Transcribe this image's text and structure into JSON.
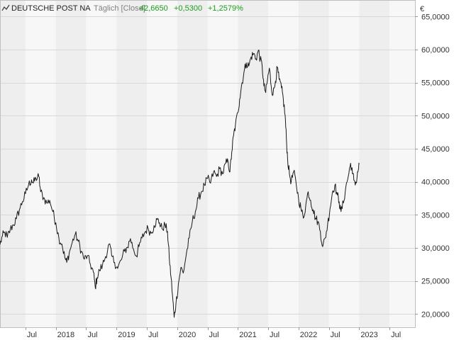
{
  "header": {
    "title": "DEUTSCHE POST NA",
    "mode": "Täglich [Close]",
    "last": "42,6650",
    "change": "+0,5300",
    "change_pct": "+1,2579%",
    "currency": "€"
  },
  "colors": {
    "positive": "#1a9e1a",
    "line": "#1a1a1a",
    "title": "#222222",
    "mode": "#808080",
    "band_a": "#f7f7f7",
    "band_b": "#eeeeee",
    "grid": "#d8d8d8"
  },
  "chart_data": {
    "type": "line",
    "title": "DEUTSCHE POST NA",
    "ylabel": "€",
    "xlabel": "",
    "grid": true,
    "ylim": [
      18000,
      67500
    ],
    "xlim": [
      2017.08,
      2023.92
    ],
    "y_ticks": [
      20000,
      25000,
      30000,
      35000,
      40000,
      45000,
      50000,
      55000,
      60000,
      65000
    ],
    "y_tick_labels": [
      "20,0000",
      "25,0000",
      "30,0000",
      "35,0000",
      "40,0000",
      "45,0000",
      "50,0000",
      "55,0000",
      "60,0000",
      "65,0000"
    ],
    "x_ticks": [
      {
        "x": 2017.5,
        "label": "Jul"
      },
      {
        "x": 2018.0,
        "label": "2018"
      },
      {
        "x": 2018.5,
        "label": "Jul"
      },
      {
        "x": 2019.0,
        "label": "2019"
      },
      {
        "x": 2019.5,
        "label": "Jul"
      },
      {
        "x": 2020.0,
        "label": "2020"
      },
      {
        "x": 2020.5,
        "label": "Jul"
      },
      {
        "x": 2021.0,
        "label": "2021"
      },
      {
        "x": 2021.5,
        "label": "Jul"
      },
      {
        "x": 2022.0,
        "label": "2022"
      },
      {
        "x": 2022.5,
        "label": "Jul"
      },
      {
        "x": 2023.0,
        "label": "2023"
      },
      {
        "x": 2023.5,
        "label": "Jul"
      }
    ],
    "series": [
      {
        "values": [
          [
            2017.08,
            30500
          ],
          [
            2017.12,
            31800
          ],
          [
            2017.16,
            32300
          ],
          [
            2017.2,
            31600
          ],
          [
            2017.25,
            32800
          ],
          [
            2017.3,
            33500
          ],
          [
            2017.35,
            34400
          ],
          [
            2017.4,
            35800
          ],
          [
            2017.45,
            37000
          ],
          [
            2017.5,
            38200
          ],
          [
            2017.55,
            39500
          ],
          [
            2017.6,
            40300
          ],
          [
            2017.63,
            39800
          ],
          [
            2017.67,
            40500
          ],
          [
            2017.72,
            40800
          ],
          [
            2017.75,
            38500
          ],
          [
            2017.8,
            37600
          ],
          [
            2017.85,
            36800
          ],
          [
            2017.9,
            37200
          ],
          [
            2017.95,
            35500
          ],
          [
            2018.0,
            33800
          ],
          [
            2018.05,
            31500
          ],
          [
            2018.1,
            30600
          ],
          [
            2018.15,
            28500
          ],
          [
            2018.18,
            27800
          ],
          [
            2018.22,
            29200
          ],
          [
            2018.27,
            30800
          ],
          [
            2018.32,
            32100
          ],
          [
            2018.37,
            31000
          ],
          [
            2018.42,
            29500
          ],
          [
            2018.47,
            28300
          ],
          [
            2018.52,
            28800
          ],
          [
            2018.57,
            27500
          ],
          [
            2018.62,
            26300
          ],
          [
            2018.65,
            24000
          ],
          [
            2018.68,
            25500
          ],
          [
            2018.72,
            26600
          ],
          [
            2018.77,
            27400
          ],
          [
            2018.82,
            28700
          ],
          [
            2018.88,
            30600
          ],
          [
            2018.92,
            28800
          ],
          [
            2018.97,
            27800
          ],
          [
            2019.02,
            26900
          ],
          [
            2019.08,
            28200
          ],
          [
            2019.13,
            29500
          ],
          [
            2019.18,
            30100
          ],
          [
            2019.23,
            31400
          ],
          [
            2019.28,
            29800
          ],
          [
            2019.33,
            28800
          ],
          [
            2019.37,
            30200
          ],
          [
            2019.42,
            31500
          ],
          [
            2019.47,
            32400
          ],
          [
            2019.52,
            33000
          ],
          [
            2019.57,
            32200
          ],
          [
            2019.62,
            33400
          ],
          [
            2019.67,
            34300
          ],
          [
            2019.71,
            33800
          ],
          [
            2019.75,
            32900
          ],
          [
            2019.8,
            33500
          ],
          [
            2019.84,
            32500
          ],
          [
            2019.87,
            28500
          ],
          [
            2019.9,
            25500
          ],
          [
            2019.93,
            22000
          ],
          [
            2019.95,
            19500
          ],
          [
            2019.98,
            21500
          ],
          [
            2020.02,
            24500
          ],
          [
            2020.06,
            27000
          ],
          [
            2020.1,
            26200
          ],
          [
            2020.15,
            29000
          ],
          [
            2020.2,
            31500
          ],
          [
            2020.25,
            34000
          ],
          [
            2020.3,
            35500
          ],
          [
            2020.35,
            37500
          ],
          [
            2020.4,
            38500
          ],
          [
            2020.45,
            39500
          ],
          [
            2020.5,
            40500
          ],
          [
            2020.55,
            39800
          ],
          [
            2020.6,
            41500
          ],
          [
            2020.65,
            40800
          ],
          [
            2020.7,
            42000
          ],
          [
            2020.75,
            41200
          ],
          [
            2020.8,
            42800
          ],
          [
            2020.84,
            43000
          ],
          [
            2020.87,
            41500
          ],
          [
            2020.9,
            44500
          ],
          [
            2020.93,
            47000
          ],
          [
            2020.96,
            48500
          ],
          [
            2021.0,
            50500
          ],
          [
            2021.03,
            52500
          ],
          [
            2021.06,
            54500
          ],
          [
            2021.1,
            56500
          ],
          [
            2021.14,
            58000
          ],
          [
            2021.18,
            57500
          ],
          [
            2021.22,
            58900
          ],
          [
            2021.26,
            59400
          ],
          [
            2021.3,
            58600
          ],
          [
            2021.34,
            59900
          ],
          [
            2021.37,
            58500
          ],
          [
            2021.4,
            57600
          ],
          [
            2021.43,
            54500
          ],
          [
            2021.46,
            53500
          ],
          [
            2021.49,
            55500
          ],
          [
            2021.52,
            57200
          ],
          [
            2021.55,
            54500
          ],
          [
            2021.58,
            53200
          ],
          [
            2021.62,
            55200
          ],
          [
            2021.65,
            57300
          ],
          [
            2021.68,
            55500
          ],
          [
            2021.72,
            54200
          ],
          [
            2021.75,
            52500
          ],
          [
            2021.78,
            50000
          ],
          [
            2021.8,
            46500
          ],
          [
            2021.82,
            43500
          ],
          [
            2021.85,
            41200
          ],
          [
            2021.88,
            40000
          ],
          [
            2021.92,
            41500
          ],
          [
            2021.96,
            39800
          ],
          [
            2022.0,
            37500
          ],
          [
            2022.04,
            36000
          ],
          [
            2022.08,
            34500
          ],
          [
            2022.12,
            36500
          ],
          [
            2022.16,
            38500
          ],
          [
            2022.2,
            37200
          ],
          [
            2022.24,
            35800
          ],
          [
            2022.28,
            34500
          ],
          [
            2022.32,
            34000
          ],
          [
            2022.36,
            32500
          ],
          [
            2022.4,
            30200
          ],
          [
            2022.44,
            31500
          ],
          [
            2022.48,
            33500
          ],
          [
            2022.52,
            36000
          ],
          [
            2022.56,
            38500
          ],
          [
            2022.6,
            39500
          ],
          [
            2022.64,
            38000
          ],
          [
            2022.67,
            37000
          ],
          [
            2022.7,
            35500
          ],
          [
            2022.74,
            36800
          ],
          [
            2022.78,
            39200
          ],
          [
            2022.82,
            40800
          ],
          [
            2022.86,
            42800
          ],
          [
            2022.89,
            41200
          ],
          [
            2022.92,
            40200
          ],
          [
            2022.95,
            39800
          ],
          [
            2022.98,
            41500
          ],
          [
            2023.0,
            42665
          ]
        ]
      }
    ]
  }
}
